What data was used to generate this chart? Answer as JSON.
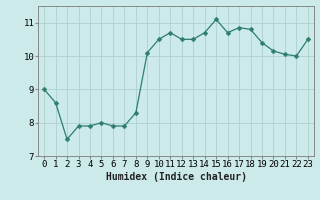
{
  "x": [
    0,
    1,
    2,
    3,
    4,
    5,
    6,
    7,
    8,
    9,
    10,
    11,
    12,
    13,
    14,
    15,
    16,
    17,
    18,
    19,
    20,
    21,
    22,
    23
  ],
  "y": [
    9.0,
    8.6,
    7.5,
    7.9,
    7.9,
    8.0,
    7.9,
    7.9,
    8.3,
    10.1,
    10.5,
    10.7,
    10.5,
    10.5,
    10.7,
    11.1,
    10.7,
    10.85,
    10.8,
    10.4,
    10.15,
    10.05,
    10.0,
    10.5
  ],
  "line_color": "#2e7d6e",
  "marker": "D",
  "marker_size": 2.5,
  "bg_color": "#cceaea",
  "grid_color": "#afd0d0",
  "xlabel": "Humidex (Indice chaleur)",
  "xlim": [
    -0.5,
    23.5
  ],
  "ylim": [
    7,
    11.5
  ],
  "yticks": [
    7,
    8,
    9,
    10,
    11
  ],
  "xticks": [
    0,
    1,
    2,
    3,
    4,
    5,
    6,
    7,
    8,
    9,
    10,
    11,
    12,
    13,
    14,
    15,
    16,
    17,
    18,
    19,
    20,
    21,
    22,
    23
  ],
  "label_fontsize": 7,
  "tick_fontsize": 6.5,
  "spine_color": "#888888"
}
